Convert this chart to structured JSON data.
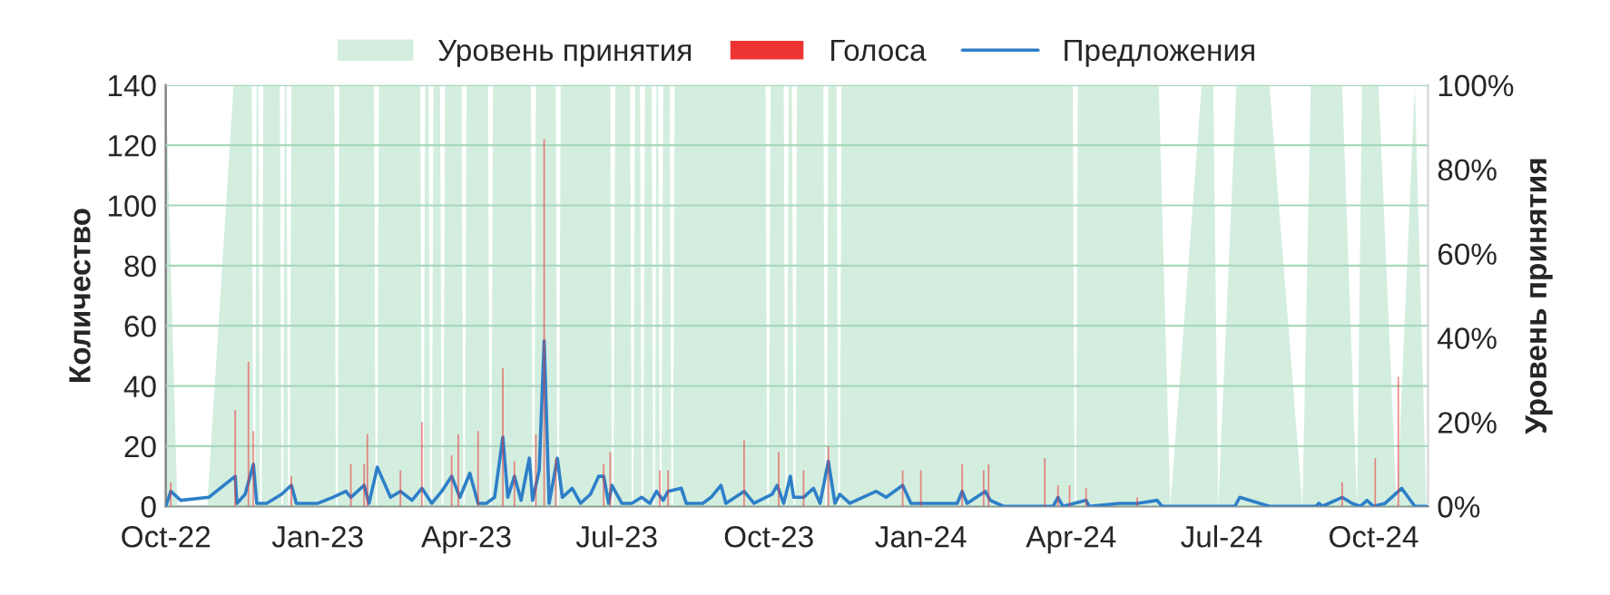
{
  "chart_data": {
    "type": "line",
    "ylabel": "Количество",
    "y2label": "Уровень принятия",
    "legend": "top",
    "grid": "y",
    "xlim": [
      "2022-10-01",
      "2024-11-03"
    ],
    "xticks": [
      {
        "value": "2022-10-01",
        "label": "Oct-22"
      },
      {
        "value": "2023-01-01",
        "label": "Jan-23"
      },
      {
        "value": "2023-04-01",
        "label": "Apr-23"
      },
      {
        "value": "2023-07-01",
        "label": "Jul-23"
      },
      {
        "value": "2023-10-01",
        "label": "Oct-23"
      },
      {
        "value": "2024-01-01",
        "label": "Jan-24"
      },
      {
        "value": "2024-04-01",
        "label": "Apr-24"
      },
      {
        "value": "2024-07-01",
        "label": "Jul-24"
      },
      {
        "value": "2024-10-01",
        "label": "Oct-24"
      }
    ],
    "ylim": [
      0,
      140
    ],
    "yticks": [
      0,
      20,
      40,
      60,
      80,
      100,
      120,
      140
    ],
    "y2lim": [
      0,
      100
    ],
    "y2ticks": [
      {
        "value": 0,
        "label": "0%"
      },
      {
        "value": 20,
        "label": "20%"
      },
      {
        "value": 40,
        "label": "40%"
      },
      {
        "value": 60,
        "label": "60%"
      },
      {
        "value": 80,
        "label": "80%"
      },
      {
        "value": 100,
        "label": "100%"
      }
    ],
    "series": [
      {
        "name": "Уровень принятия",
        "type": "area",
        "axis": "y2",
        "color": "#d3eedf",
        "x": [
          "2022-10-01",
          "2022-10-08",
          "2022-10-26",
          "2022-11-11",
          "2022-11-22",
          "2022-11-23",
          "2022-11-24",
          "2022-11-25",
          "2022-11-26",
          "2022-11-27",
          "2022-11-28",
          "2022-11-29",
          "2022-12-09",
          "2022-12-10",
          "2022-12-11",
          "2022-12-12",
          "2022-12-13",
          "2022-12-14",
          "2022-12-15",
          "2022-12-16",
          "2023-01-11",
          "2023-01-12",
          "2023-01-13",
          "2023-01-14",
          "2023-02-04",
          "2023-02-05",
          "2023-02-06",
          "2023-02-07",
          "2023-03-04",
          "2023-03-05",
          "2023-03-06",
          "2023-03-07",
          "2023-03-09",
          "2023-03-10",
          "2023-03-11",
          "2023-03-12",
          "2023-03-16",
          "2023-03-17",
          "2023-03-18",
          "2023-03-19",
          "2023-03-29",
          "2023-03-30",
          "2023-03-31",
          "2023-04-01",
          "2023-04-14",
          "2023-04-15",
          "2023-04-16",
          "2023-04-17",
          "2023-05-10",
          "2023-05-11",
          "2023-05-12",
          "2023-05-13",
          "2023-05-25",
          "2023-05-26",
          "2023-05-27",
          "2023-05-28",
          "2023-06-27",
          "2023-06-28",
          "2023-06-29",
          "2023-06-30",
          "2023-07-09",
          "2023-07-10",
          "2023-07-11",
          "2023-07-12",
          "2023-07-15",
          "2023-07-16",
          "2023-07-17",
          "2023-07-18",
          "2023-07-22",
          "2023-07-23",
          "2023-07-24",
          "2023-07-25",
          "2023-07-26",
          "2023-07-27",
          "2023-07-28",
          "2023-07-29",
          "2023-08-02",
          "2023-08-03",
          "2023-08-04",
          "2023-08-05",
          "2023-09-29",
          "2023-09-30",
          "2023-10-01",
          "2023-10-02",
          "2023-10-10",
          "2023-10-11",
          "2023-10-12",
          "2023-10-13",
          "2023-10-15",
          "2023-10-16",
          "2023-10-17",
          "2023-10-18",
          "2023-11-03",
          "2023-11-04",
          "2023-11-05",
          "2023-11-06",
          "2023-11-11",
          "2023-11-12",
          "2023-11-13",
          "2023-11-14",
          "2024-04-02",
          "2024-04-03",
          "2024-04-04",
          "2024-04-05",
          "2024-05-24",
          "2024-05-31",
          "2024-06-19",
          "2024-06-26",
          "2024-06-29",
          "2024-07-10",
          "2024-07-30",
          "2024-08-19",
          "2024-08-24",
          "2024-09-12",
          "2024-09-21",
          "2024-09-24",
          "2024-10-04",
          "2024-10-15",
          "2024-10-26",
          "2024-11-02"
        ],
        "values": [
          100,
          0,
          0,
          100,
          100,
          0,
          0,
          100,
          100,
          0,
          0,
          100,
          100,
          0,
          0,
          100,
          100,
          0,
          0,
          100,
          100,
          0,
          0,
          100,
          100,
          0,
          0,
          100,
          100,
          0,
          0,
          100,
          100,
          0,
          0,
          100,
          100,
          0,
          0,
          100,
          100,
          0,
          0,
          100,
          100,
          0,
          0,
          100,
          100,
          0,
          0,
          100,
          100,
          0,
          0,
          100,
          100,
          0,
          0,
          100,
          100,
          0,
          0,
          100,
          100,
          0,
          0,
          100,
          100,
          0,
          0,
          100,
          100,
          0,
          0,
          100,
          100,
          0,
          0,
          100,
          100,
          0,
          0,
          100,
          100,
          0,
          0,
          100,
          100,
          0,
          0,
          100,
          100,
          0,
          0,
          100,
          100,
          0,
          0,
          100,
          100,
          0,
          0,
          100,
          100,
          0,
          100,
          100,
          0,
          100,
          100,
          0,
          100,
          100,
          0,
          100,
          100,
          0,
          100,
          0
        ]
      },
      {
        "name": "Голоса",
        "type": "bar",
        "color": "#ee3333",
        "x": [
          "2022-10-04",
          "2022-11-12",
          "2022-11-20",
          "2022-11-23",
          "2022-12-16",
          "2023-01-21",
          "2023-01-29",
          "2023-01-31",
          "2023-02-20",
          "2023-03-05",
          "2023-03-23",
          "2023-03-27",
          "2023-04-08",
          "2023-04-23",
          "2023-04-30",
          "2023-05-13",
          "2023-05-18",
          "2023-05-25",
          "2023-06-23",
          "2023-06-27",
          "2023-07-27",
          "2023-08-01",
          "2023-09-16",
          "2023-10-07",
          "2023-10-22",
          "2023-11-06",
          "2023-12-21",
          "2024-01-01",
          "2024-01-26",
          "2024-02-08",
          "2024-02-11",
          "2024-03-16",
          "2024-03-24",
          "2024-03-31",
          "2024-04-10",
          "2024-05-11",
          "2024-09-12",
          "2024-10-02",
          "2024-10-16"
        ],
        "values": [
          8,
          32,
          48,
          25,
          10,
          14,
          14,
          24,
          12,
          28,
          17,
          24,
          25,
          46,
          15,
          24,
          122,
          16,
          14,
          18,
          12,
          12,
          22,
          18,
          12,
          20,
          12,
          12,
          14,
          12,
          14,
          16,
          7,
          7,
          6,
          3,
          8,
          16,
          43
        ]
      },
      {
        "name": "Предложения",
        "color": "#2e7fc8",
        "x": [
          "2022-10-01",
          "2022-10-04",
          "2022-10-10",
          "2022-10-27",
          "2022-11-12",
          "2022-11-13",
          "2022-11-18",
          "2022-11-23",
          "2022-11-25",
          "2022-12-01",
          "2022-12-10",
          "2022-12-16",
          "2022-12-19",
          "2023-01-01",
          "2023-01-10",
          "2023-01-18",
          "2023-01-21",
          "2023-01-29",
          "2023-02-01",
          "2023-02-06",
          "2023-02-14",
          "2023-02-20",
          "2023-02-27",
          "2023-03-05",
          "2023-03-11",
          "2023-03-17",
          "2023-03-23",
          "2023-03-28",
          "2023-04-03",
          "2023-04-08",
          "2023-04-13",
          "2023-04-18",
          "2023-04-23",
          "2023-04-26",
          "2023-04-30",
          "2023-05-04",
          "2023-05-09",
          "2023-05-11",
          "2023-05-15",
          "2023-05-18",
          "2023-05-21",
          "2023-05-26",
          "2023-05-29",
          "2023-06-04",
          "2023-06-09",
          "2023-06-15",
          "2023-06-20",
          "2023-06-23",
          "2023-06-26",
          "2023-06-28",
          "2023-07-04",
          "2023-07-10",
          "2023-07-16",
          "2023-07-21",
          "2023-07-25",
          "2023-07-29",
          "2023-08-01",
          "2023-08-09",
          "2023-08-12",
          "2023-08-22",
          "2023-08-27",
          "2023-09-02",
          "2023-09-05",
          "2023-09-16",
          "2023-09-22",
          "2023-10-03",
          "2023-10-06",
          "2023-10-10",
          "2023-10-14",
          "2023-10-16",
          "2023-10-22",
          "2023-10-28",
          "2023-11-01",
          "2023-11-06",
          "2023-11-10",
          "2023-11-13",
          "2023-11-19",
          "2023-12-05",
          "2023-12-11",
          "2023-12-21",
          "2023-12-26",
          "2024-01-01",
          "2024-01-23",
          "2024-01-26",
          "2024-01-29",
          "2024-02-09",
          "2024-02-12",
          "2024-02-20",
          "2024-02-28",
          "2024-03-21",
          "2024-03-24",
          "2024-03-27",
          "2024-04-10",
          "2024-04-12",
          "2024-04-30",
          "2024-05-11",
          "2024-05-23",
          "2024-05-26",
          "2024-07-09",
          "2024-07-12",
          "2024-07-30",
          "2024-08-27",
          "2024-08-29",
          "2024-08-31",
          "2024-09-12",
          "2024-09-18",
          "2024-09-23",
          "2024-09-27",
          "2024-10-01",
          "2024-10-08",
          "2024-10-18",
          "2024-10-26",
          "2024-11-02"
        ],
        "values": [
          0,
          5,
          2,
          3,
          10,
          1,
          4,
          14,
          1,
          1,
          4,
          7,
          1,
          1,
          3,
          5,
          3,
          7,
          1,
          13,
          3,
          5,
          2,
          6,
          1,
          5,
          10,
          3,
          11,
          1,
          1,
          3,
          23,
          3,
          10,
          2,
          16,
          2,
          12,
          55,
          1,
          16,
          3,
          6,
          1,
          4,
          10,
          10,
          1,
          7,
          1,
          1,
          3,
          1,
          5,
          2,
          5,
          6,
          1,
          1,
          3,
          7,
          1,
          5,
          1,
          4,
          7,
          1,
          10,
          3,
          3,
          6,
          1,
          15,
          1,
          4,
          1,
          5,
          3,
          7,
          1,
          1,
          1,
          5,
          1,
          5,
          2,
          0,
          0,
          0,
          3,
          0,
          2,
          0,
          1,
          1,
          2,
          0,
          0,
          3,
          0,
          0,
          1,
          0,
          3,
          1,
          0,
          2,
          0,
          1,
          6,
          0,
          0
        ]
      }
    ]
  }
}
